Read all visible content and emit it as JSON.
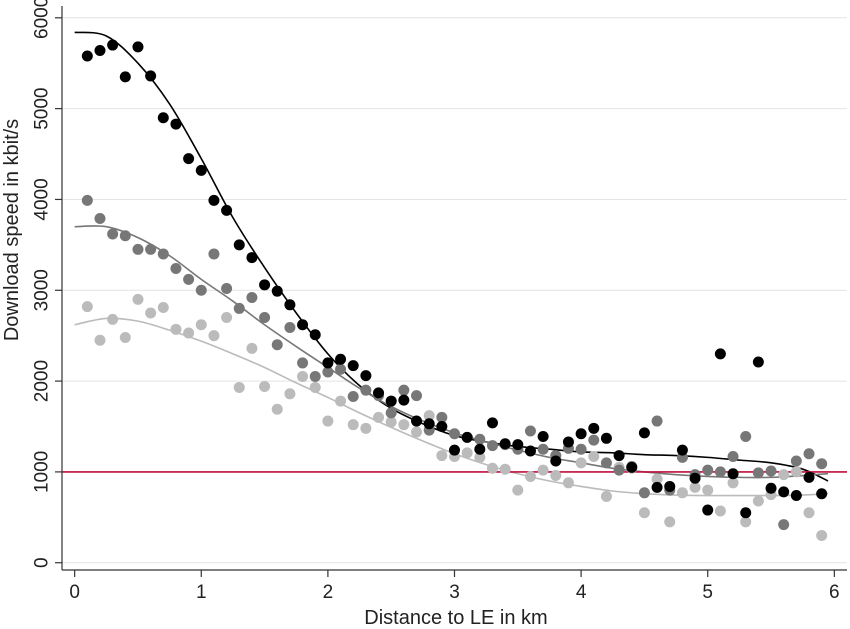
{
  "chart_data": {
    "type": "scatter",
    "title": "",
    "xlabel": "Distance to LE in km",
    "ylabel": "Download speed in kbit/s",
    "xlim": [
      -0.1,
      6.1
    ],
    "ylim": [
      -80,
      6130
    ],
    "xticks": [
      0,
      1,
      2,
      3,
      4,
      5,
      6
    ],
    "yticks": [
      0,
      1000,
      2000,
      3000,
      4000,
      5000,
      6000
    ],
    "grid": "horizontal",
    "legend": "none",
    "reference_line": {
      "y": 1000,
      "color": "#c0103c"
    },
    "series": [
      {
        "color": "#000000",
        "x": [
          0.1,
          0.2,
          0.3,
          0.4,
          0.5,
          0.6,
          0.7,
          0.8,
          0.9,
          1.0,
          1.1,
          1.2,
          1.3,
          1.4,
          1.5,
          1.6,
          1.7,
          1.8,
          1.9,
          2.0,
          2.1,
          2.2,
          2.3,
          2.4,
          2.5,
          2.6,
          2.7,
          2.8,
          2.9,
          3.0,
          3.1,
          3.2,
          3.3,
          3.4,
          3.5,
          3.6,
          3.7,
          3.8,
          3.9,
          4.0,
          4.1,
          4.2,
          4.3,
          4.4,
          4.5,
          4.6,
          4.7,
          4.8,
          4.9,
          5.0,
          5.1,
          5.2,
          5.3,
          5.4,
          5.5,
          5.6,
          5.7,
          5.8,
          5.9
        ],
        "y": [
          5580,
          5640,
          5700,
          5350,
          5680,
          5360,
          4900,
          4830,
          4450,
          4320,
          3990,
          3880,
          3500,
          3360,
          3060,
          2990,
          2840,
          2620,
          2510,
          2200,
          2240,
          2170,
          2060,
          1870,
          1780,
          1790,
          1560,
          1530,
          1500,
          1240,
          1380,
          1250,
          1540,
          1310,
          1300,
          1230,
          1390,
          1120,
          1330,
          1420,
          1480,
          1370,
          1180,
          1050,
          1430,
          830,
          840,
          1240,
          930,
          580,
          2300,
          980,
          550,
          2210,
          820,
          780,
          740,
          940,
          760
        ],
        "fit_x": [
          0,
          0.25,
          0.5,
          0.75,
          1,
          1.25,
          1.5,
          1.75,
          2,
          2.25,
          2.5,
          2.75,
          3,
          3.25,
          3.5,
          3.75,
          4,
          4.25,
          4.5,
          4.75,
          5,
          5.25,
          5.5,
          5.75,
          5.95
        ],
        "fit_y": [
          5840,
          5800,
          5500,
          5050,
          4450,
          3800,
          3250,
          2750,
          2300,
          1950,
          1700,
          1530,
          1400,
          1330,
          1280,
          1250,
          1220,
          1210,
          1190,
          1180,
          1160,
          1130,
          1100,
          1030,
          900
        ]
      },
      {
        "color": "#777777",
        "x": [
          0.1,
          0.2,
          0.3,
          0.4,
          0.5,
          0.6,
          0.7,
          0.8,
          0.9,
          1.0,
          1.1,
          1.2,
          1.3,
          1.4,
          1.5,
          1.6,
          1.7,
          1.8,
          1.9,
          2.0,
          2.1,
          2.2,
          2.3,
          2.4,
          2.5,
          2.6,
          2.7,
          2.8,
          2.9,
          3.0,
          3.1,
          3.2,
          3.3,
          3.4,
          3.5,
          3.6,
          3.7,
          3.8,
          3.9,
          4.0,
          4.1,
          4.2,
          4.3,
          4.4,
          4.5,
          4.6,
          4.7,
          4.8,
          4.9,
          5.0,
          5.1,
          5.2,
          5.3,
          5.4,
          5.5,
          5.6,
          5.7,
          5.8,
          5.9
        ],
        "y": [
          3990,
          3790,
          3620,
          3600,
          3450,
          3450,
          3400,
          3240,
          3120,
          3000,
          3400,
          3020,
          2800,
          2920,
          2700,
          2400,
          2590,
          2200,
          2050,
          2100,
          2130,
          1830,
          1900,
          1840,
          1650,
          1900,
          1840,
          1460,
          1600,
          1420,
          1380,
          1360,
          1290,
          1300,
          1250,
          1450,
          1250,
          1180,
          1260,
          1250,
          1350,
          1100,
          1020,
          1060,
          770,
          1560,
          800,
          1160,
          970,
          1020,
          1000,
          1170,
          1390,
          990,
          1010,
          420,
          1120,
          1200,
          1090
        ],
        "fit_x": [
          0,
          0.25,
          0.5,
          0.75,
          1,
          1.25,
          1.5,
          1.75,
          2,
          2.25,
          2.5,
          2.75,
          3,
          3.25,
          3.5,
          3.75,
          4,
          4.25,
          4.5,
          4.75,
          5,
          5.25,
          5.5,
          5.75,
          5.95
        ],
        "fit_y": [
          3700,
          3700,
          3580,
          3380,
          3120,
          2880,
          2620,
          2380,
          2150,
          1920,
          1720,
          1560,
          1430,
          1330,
          1240,
          1160,
          1100,
          1040,
          1000,
          970,
          950,
          940,
          940,
          960,
          980
        ]
      },
      {
        "color": "#bbbbbb",
        "x": [
          0.1,
          0.2,
          0.3,
          0.4,
          0.5,
          0.6,
          0.7,
          0.8,
          0.9,
          1.0,
          1.1,
          1.2,
          1.3,
          1.4,
          1.5,
          1.6,
          1.7,
          1.8,
          1.9,
          2.0,
          2.1,
          2.2,
          2.3,
          2.4,
          2.5,
          2.6,
          2.7,
          2.8,
          2.9,
          3.0,
          3.1,
          3.2,
          3.3,
          3.4,
          3.5,
          3.6,
          3.7,
          3.8,
          3.9,
          4.0,
          4.1,
          4.2,
          4.3,
          4.4,
          4.5,
          4.6,
          4.7,
          4.8,
          4.9,
          5.0,
          5.1,
          5.2,
          5.3,
          5.4,
          5.5,
          5.6,
          5.7,
          5.8,
          5.9
        ],
        "y": [
          2820,
          2450,
          2680,
          2480,
          2900,
          2750,
          2810,
          2570,
          2530,
          2620,
          2500,
          2700,
          1930,
          2360,
          1940,
          1690,
          1860,
          2050,
          1930,
          1560,
          1780,
          1520,
          1480,
          1600,
          1550,
          1520,
          1440,
          1620,
          1180,
          1170,
          1210,
          1160,
          1040,
          1030,
          800,
          950,
          1020,
          960,
          880,
          1100,
          1170,
          730,
          1050,
          1040,
          550,
          920,
          450,
          770,
          830,
          800,
          570,
          880,
          450,
          680,
          750,
          970,
          1000,
          550,
          300
        ],
        "fit_x": [
          0,
          0.25,
          0.5,
          0.75,
          1,
          1.25,
          1.5,
          1.75,
          2,
          2.25,
          2.5,
          2.75,
          3,
          3.25,
          3.5,
          3.75,
          4,
          4.25,
          4.5,
          4.75,
          5,
          5.25,
          5.5,
          5.75,
          5.95
        ],
        "fit_y": [
          2620,
          2690,
          2660,
          2560,
          2440,
          2300,
          2150,
          1980,
          1820,
          1650,
          1490,
          1340,
          1200,
          1080,
          980,
          900,
          840,
          790,
          760,
          745,
          740,
          740,
          740,
          745,
          760
        ]
      }
    ]
  }
}
